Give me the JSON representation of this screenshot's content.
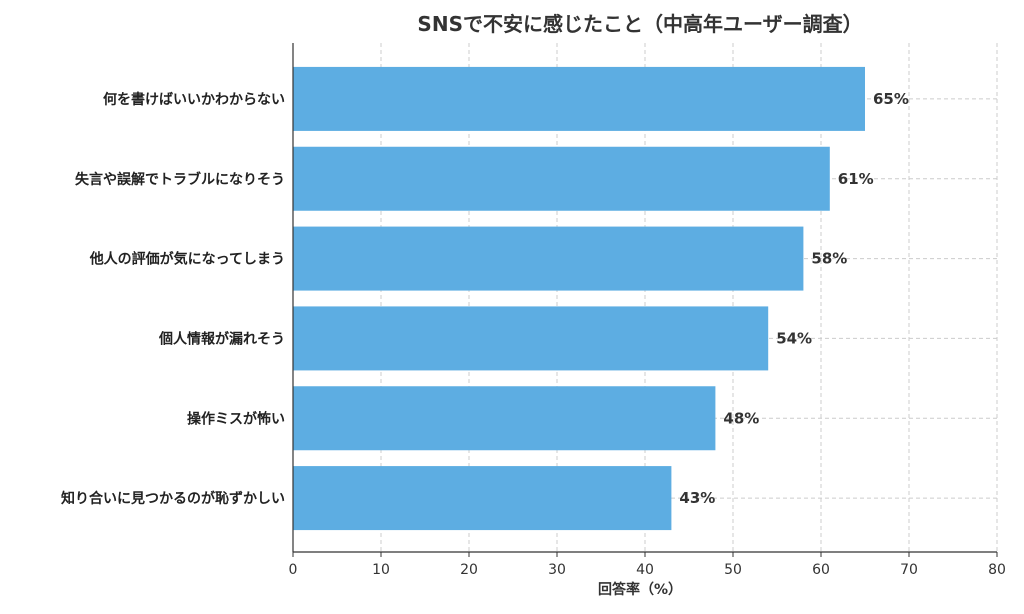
{
  "chart_data": {
    "type": "bar",
    "orientation": "horizontal",
    "title": "SNSで不安に感じたこと（中高年ユーザー調査）",
    "xlabel": "回答率（%）",
    "ylabel": "",
    "categories": [
      "何を書けばいいかわからない",
      "失言や誤解でトラブルになりそう",
      "他人の評価が気になってしまう",
      "個人情報が漏れそう",
      "操作ミスが怖い",
      "知り合いに見つかるのが恥ずかしい"
    ],
    "values": [
      65,
      61,
      58,
      54,
      48,
      43
    ],
    "value_labels": [
      "65%",
      "61%",
      "58%",
      "54%",
      "48%",
      "43%"
    ],
    "xlim": [
      0,
      80
    ],
    "xticks": [
      0,
      10,
      20,
      30,
      40,
      50,
      60,
      70,
      80
    ],
    "grid": true,
    "bar_color": "#5dade2"
  }
}
